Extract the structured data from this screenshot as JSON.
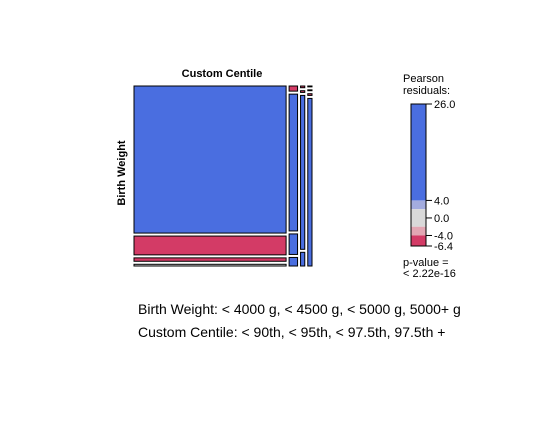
{
  "chart_data": {
    "type": "mosaic",
    "title": "Custom Centile",
    "ylabel": "Birth Weight",
    "legend": {
      "title_lines": [
        "Pearson",
        "residuals:"
      ],
      "max": 26.0,
      "min": -6.4,
      "ticks": [
        {
          "value": 26.0,
          "label": "26.0"
        },
        {
          "value": 4.0,
          "label": "4.0"
        },
        {
          "value": 0.0,
          "label": "0.0"
        },
        {
          "value": -4.0,
          "label": "-4.0"
        },
        {
          "value": -6.4,
          "label": "-6.4"
        }
      ],
      "pvalue_lines": [
        "p-value =",
        "< 2.22e-16"
      ],
      "colors": {
        "strong_positive": "#4a6ee0",
        "weak_positive": "#a3acdf",
        "neutral": "#d9d9d9",
        "weak_negative": "#e3a6b3",
        "strong_negative": "#d33b66"
      }
    },
    "column_categories": [
      "< 90th",
      "< 95th",
      "< 97.5th",
      "97.5th +"
    ],
    "row_categories": [
      "< 4000 g",
      "< 4500 g",
      "< 5000 g",
      "5000+ g"
    ],
    "column_proportions": [
      0.9,
      0.05,
      0.025,
      0.025
    ],
    "cells": [
      [
        {
          "p": 0.86,
          "r": 10
        },
        {
          "p": 0.03,
          "r": -10
        },
        {
          "p": 0.01,
          "r": -10
        },
        {
          "p": 0.005,
          "r": -10
        }
      ],
      [
        {
          "p": 0.11,
          "r": -10
        },
        {
          "p": 0.8,
          "r": 10
        },
        {
          "p": 0.01,
          "r": -10
        },
        {
          "p": 0.005,
          "r": -10
        }
      ],
      [
        {
          "p": 0.02,
          "r": -10
        },
        {
          "p": 0.12,
          "r": 10
        },
        {
          "p": 0.9,
          "r": 10
        },
        {
          "p": 0.01,
          "r": -10
        }
      ],
      [
        {
          "p": 0.01,
          "r": 0
        },
        {
          "p": 0.05,
          "r": 10
        },
        {
          "p": 0.08,
          "r": 10
        },
        {
          "p": 0.98,
          "r": 10
        }
      ]
    ]
  },
  "captions": {
    "rows_line": "Birth Weight: < 4000 g, < 4500 g, < 5000 g, 5000+ g",
    "cols_line": "Custom Centile: < 90th, < 95th, < 97.5th, 97.5th +"
  }
}
